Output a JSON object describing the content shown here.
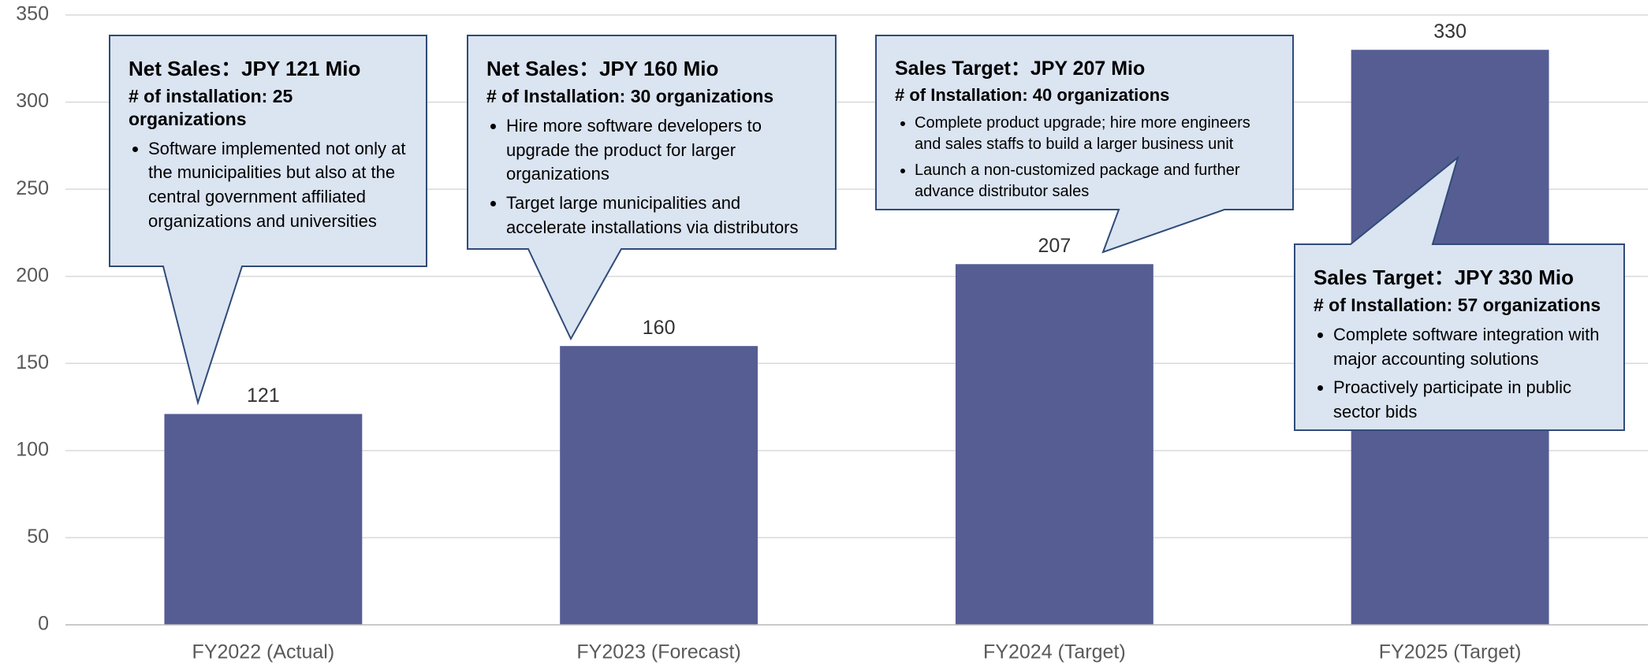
{
  "chart_data": {
    "type": "bar",
    "categories": [
      "FY2022 (Actual)",
      "FY2023 (Forecast)",
      "FY2024 (Target)",
      "FY2025 (Target)"
    ],
    "values": [
      121,
      160,
      207,
      330
    ],
    "color": "#565d93",
    "ylim": [
      0,
      350
    ],
    "yticks": [
      0,
      50,
      100,
      150,
      200,
      250,
      300,
      350
    ],
    "grid": true,
    "annotations": [
      {
        "title": "Net Sales：JPY 121 Mio",
        "subtitle": "# of installation: 25 organizations",
        "bullets": [
          "Software implemented not only at the municipalities but also at the central government affiliated organizations and universities"
        ]
      },
      {
        "title": "Net Sales：JPY 160 Mio",
        "subtitle": "# of Installation: 30 organizations",
        "bullets": [
          "Hire more software developers to upgrade the product for larger organizations",
          "Target large municipalities and accelerate installations via distributors"
        ]
      },
      {
        "title": "Sales Target：JPY 207 Mio",
        "subtitle": "# of Installation: 40 organizations",
        "bullets": [
          "Complete product upgrade; hire more engineers and sales staffs to build a larger business unit",
          "Launch a non-customized package and further advance distributor sales"
        ]
      },
      {
        "title": "Sales Target：JPY 330 Mio",
        "subtitle": "# of Installation: 57 organizations",
        "bullets": [
          "Complete software integration with major accounting solutions",
          "Proactively participate in public sector bids"
        ]
      }
    ]
  }
}
